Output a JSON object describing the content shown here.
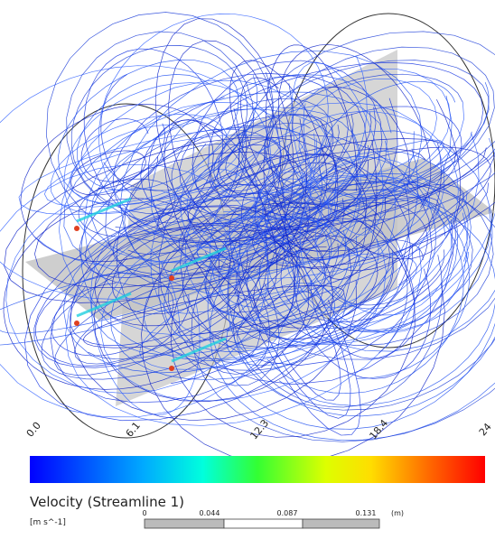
{
  "legend": {
    "title": "Velocity (Streamline 1)",
    "unit": "[m s^-1]",
    "ticks": [
      "0.0",
      "6.1",
      "12.3",
      "18.4",
      "24"
    ]
  },
  "scale_bar": {
    "labels": [
      "0",
      "0.044",
      "0.087",
      "0.131"
    ],
    "unit": "(m)"
  }
}
